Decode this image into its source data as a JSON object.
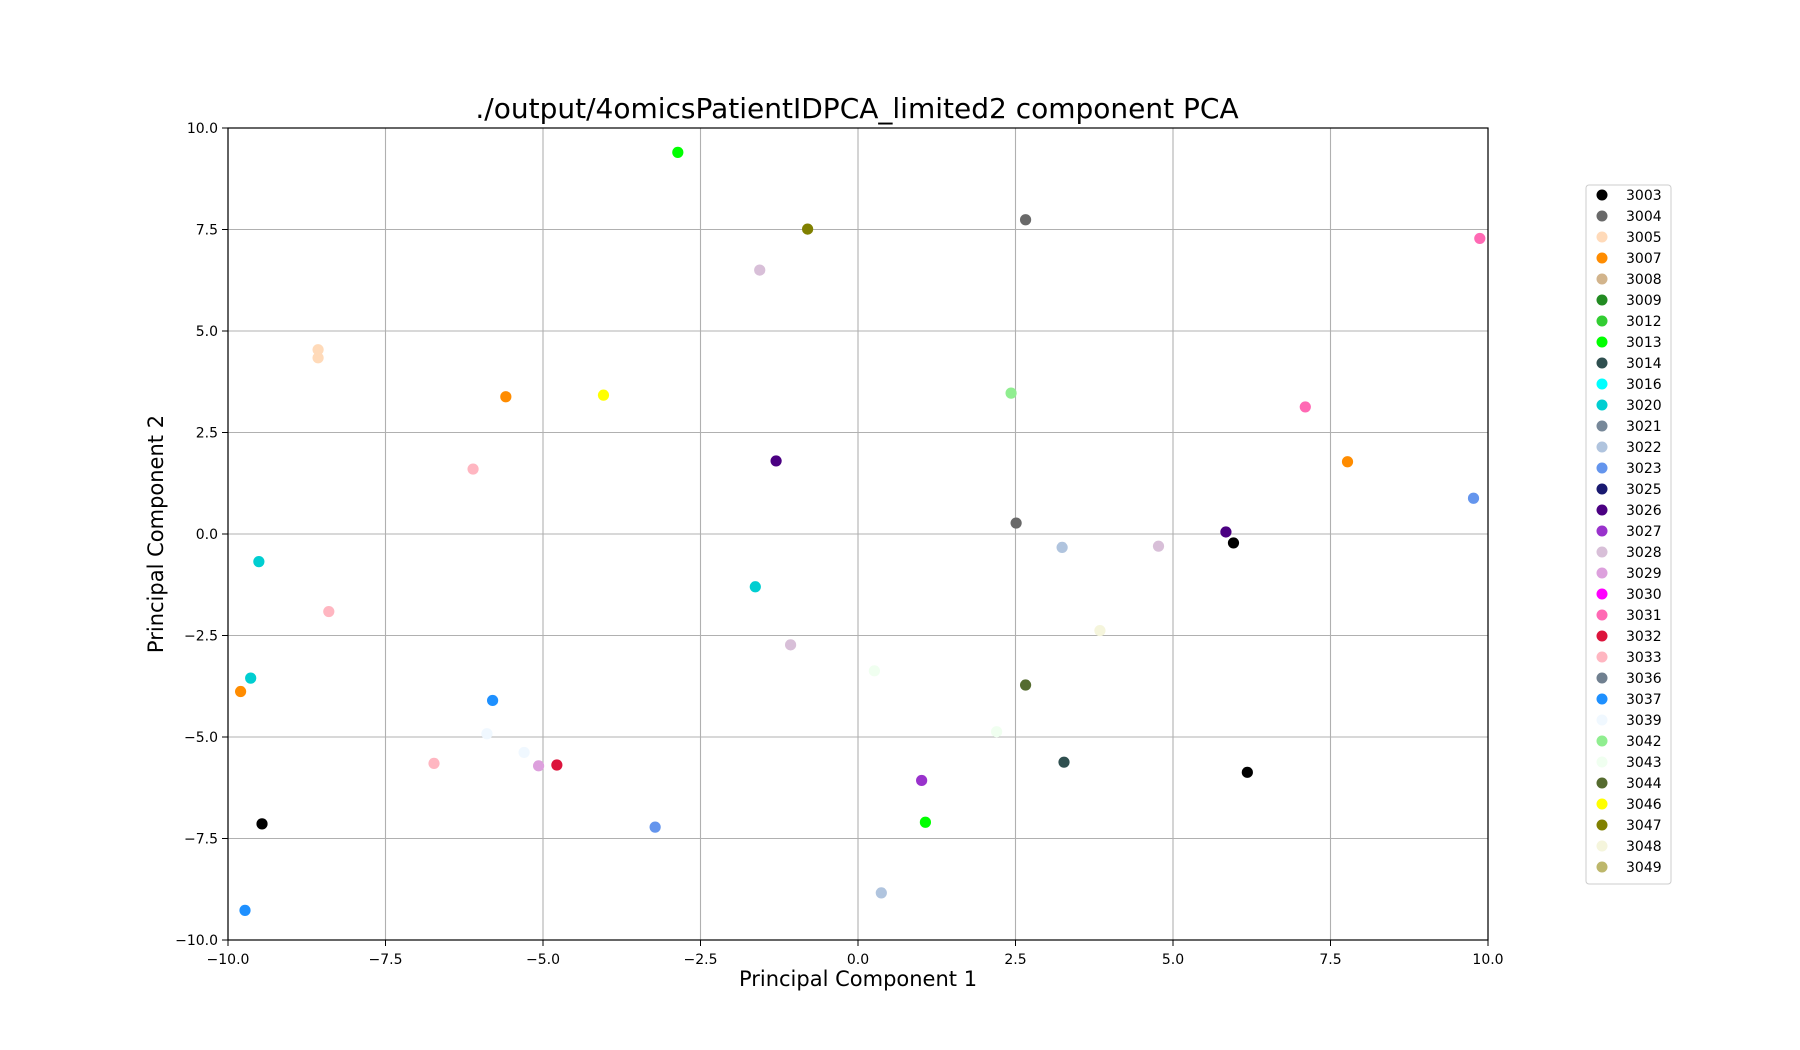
{
  "chart_data": {
    "type": "scatter",
    "title": "./output/4omicsPatientIDPCA_limited2 component PCA",
    "xlabel": "Principal Component 1",
    "ylabel": "Principal Component 2",
    "xlim": [
      -10,
      10
    ],
    "ylim": [
      -10,
      10
    ],
    "xticks": [
      -10,
      -7.5,
      -5,
      -2.5,
      0,
      2.5,
      5,
      7.5,
      10
    ],
    "xtick_labels": [
      "−10.0",
      "−7.5",
      "−5.0",
      "−2.5",
      "0.0",
      "2.5",
      "5.0",
      "7.5",
      "10.0"
    ],
    "yticks": [
      -10,
      -7.5,
      -5,
      -2.5,
      0,
      2.5,
      5,
      7.5,
      10
    ],
    "ytick_labels": [
      "−10.0",
      "−7.5",
      "−5.0",
      "−2.5",
      "0.0",
      "2.5",
      "5.0",
      "7.5",
      "10.0"
    ],
    "grid": true,
    "legend_position": "right",
    "series": [
      {
        "name": "3003",
        "color": "#000000",
        "points": [
          [
            5.96,
            -0.22
          ],
          [
            6.18,
            -5.87
          ],
          [
            -9.46,
            -7.14
          ]
        ]
      },
      {
        "name": "3004",
        "color": "#696969",
        "points": [
          [
            2.66,
            7.74
          ],
          [
            2.51,
            0.27
          ]
        ]
      },
      {
        "name": "3005",
        "color": "#ffdab9",
        "points": [
          [
            -8.57,
            4.54
          ],
          [
            -8.57,
            4.34
          ]
        ]
      },
      {
        "name": "3007",
        "color": "#ff8c00",
        "points": [
          [
            -5.59,
            3.38
          ],
          [
            7.77,
            1.78
          ],
          [
            -9.8,
            -3.88
          ]
        ]
      },
      {
        "name": "3008",
        "color": "#d2b48c",
        "points": []
      },
      {
        "name": "3009",
        "color": "#228b22",
        "points": []
      },
      {
        "name": "3012",
        "color": "#32cd32",
        "points": []
      },
      {
        "name": "3013",
        "color": "#00ff00",
        "points": [
          [
            -2.86,
            9.4
          ],
          [
            1.07,
            -7.1
          ]
        ]
      },
      {
        "name": "3014",
        "color": "#2f4f4f",
        "points": [
          [
            3.27,
            -5.62
          ]
        ]
      },
      {
        "name": "3016",
        "color": "#00ffff",
        "points": []
      },
      {
        "name": "3020",
        "color": "#00ced1",
        "points": [
          [
            -9.51,
            -0.68
          ],
          [
            -9.64,
            -3.55
          ],
          [
            -1.63,
            -1.3
          ]
        ]
      },
      {
        "name": "3021",
        "color": "#778899",
        "points": []
      },
      {
        "name": "3022",
        "color": "#b0c4de",
        "points": [
          [
            3.24,
            -0.33
          ],
          [
            0.37,
            -8.84
          ]
        ]
      },
      {
        "name": "3023",
        "color": "#6495ed",
        "points": [
          [
            9.77,
            0.88
          ],
          [
            -3.22,
            -7.22
          ]
        ]
      },
      {
        "name": "3025",
        "color": "#191970",
        "points": []
      },
      {
        "name": "3026",
        "color": "#4b0082",
        "points": [
          [
            -1.3,
            1.8
          ],
          [
            5.84,
            0.05
          ]
        ]
      },
      {
        "name": "3027",
        "color": "#9932cc",
        "points": [
          [
            1.01,
            -6.07
          ]
        ]
      },
      {
        "name": "3028",
        "color": "#d8bfd8",
        "points": [
          [
            -1.56,
            6.5
          ],
          [
            4.77,
            -0.3
          ],
          [
            -1.07,
            -2.73
          ]
        ]
      },
      {
        "name": "3029",
        "color": "#dda0dd",
        "points": [
          [
            -5.07,
            -5.71
          ]
        ]
      },
      {
        "name": "3030",
        "color": "#ff00ff",
        "points": []
      },
      {
        "name": "3031",
        "color": "#ff69b4",
        "points": [
          [
            9.87,
            7.28
          ],
          [
            7.1,
            3.13
          ]
        ]
      },
      {
        "name": "3032",
        "color": "#dc143c",
        "points": [
          [
            -4.78,
            -5.69
          ]
        ]
      },
      {
        "name": "3033",
        "color": "#ffb6c1",
        "points": [
          [
            -6.11,
            1.6
          ],
          [
            -8.4,
            -1.91
          ],
          [
            -6.73,
            -5.65
          ]
        ]
      },
      {
        "name": "3036",
        "color": "#708090",
        "points": []
      },
      {
        "name": "3037",
        "color": "#1e90ff",
        "points": [
          [
            -5.8,
            -4.1
          ],
          [
            -9.73,
            -9.27
          ]
        ]
      },
      {
        "name": "3039",
        "color": "#f0f8ff",
        "points": [
          [
            -5.89,
            -4.92
          ],
          [
            -5.3,
            -5.38
          ]
        ]
      },
      {
        "name": "3042",
        "color": "#90ee90",
        "points": [
          [
            2.43,
            3.47
          ]
        ]
      },
      {
        "name": "3043",
        "color": "#f0fff0",
        "points": [
          [
            0.26,
            -3.37
          ],
          [
            2.2,
            -4.87
          ]
        ]
      },
      {
        "name": "3044",
        "color": "#556b2f",
        "points": [
          [
            2.66,
            -3.72
          ]
        ]
      },
      {
        "name": "3046",
        "color": "#ffff00",
        "points": [
          [
            -4.04,
            3.42
          ]
        ]
      },
      {
        "name": "3047",
        "color": "#808000",
        "points": [
          [
            -0.8,
            7.51
          ]
        ]
      },
      {
        "name": "3048",
        "color": "#f5f5dc",
        "points": [
          [
            3.84,
            -2.38
          ]
        ]
      },
      {
        "name": "3049",
        "color": "#bdb76b",
        "points": []
      }
    ]
  }
}
